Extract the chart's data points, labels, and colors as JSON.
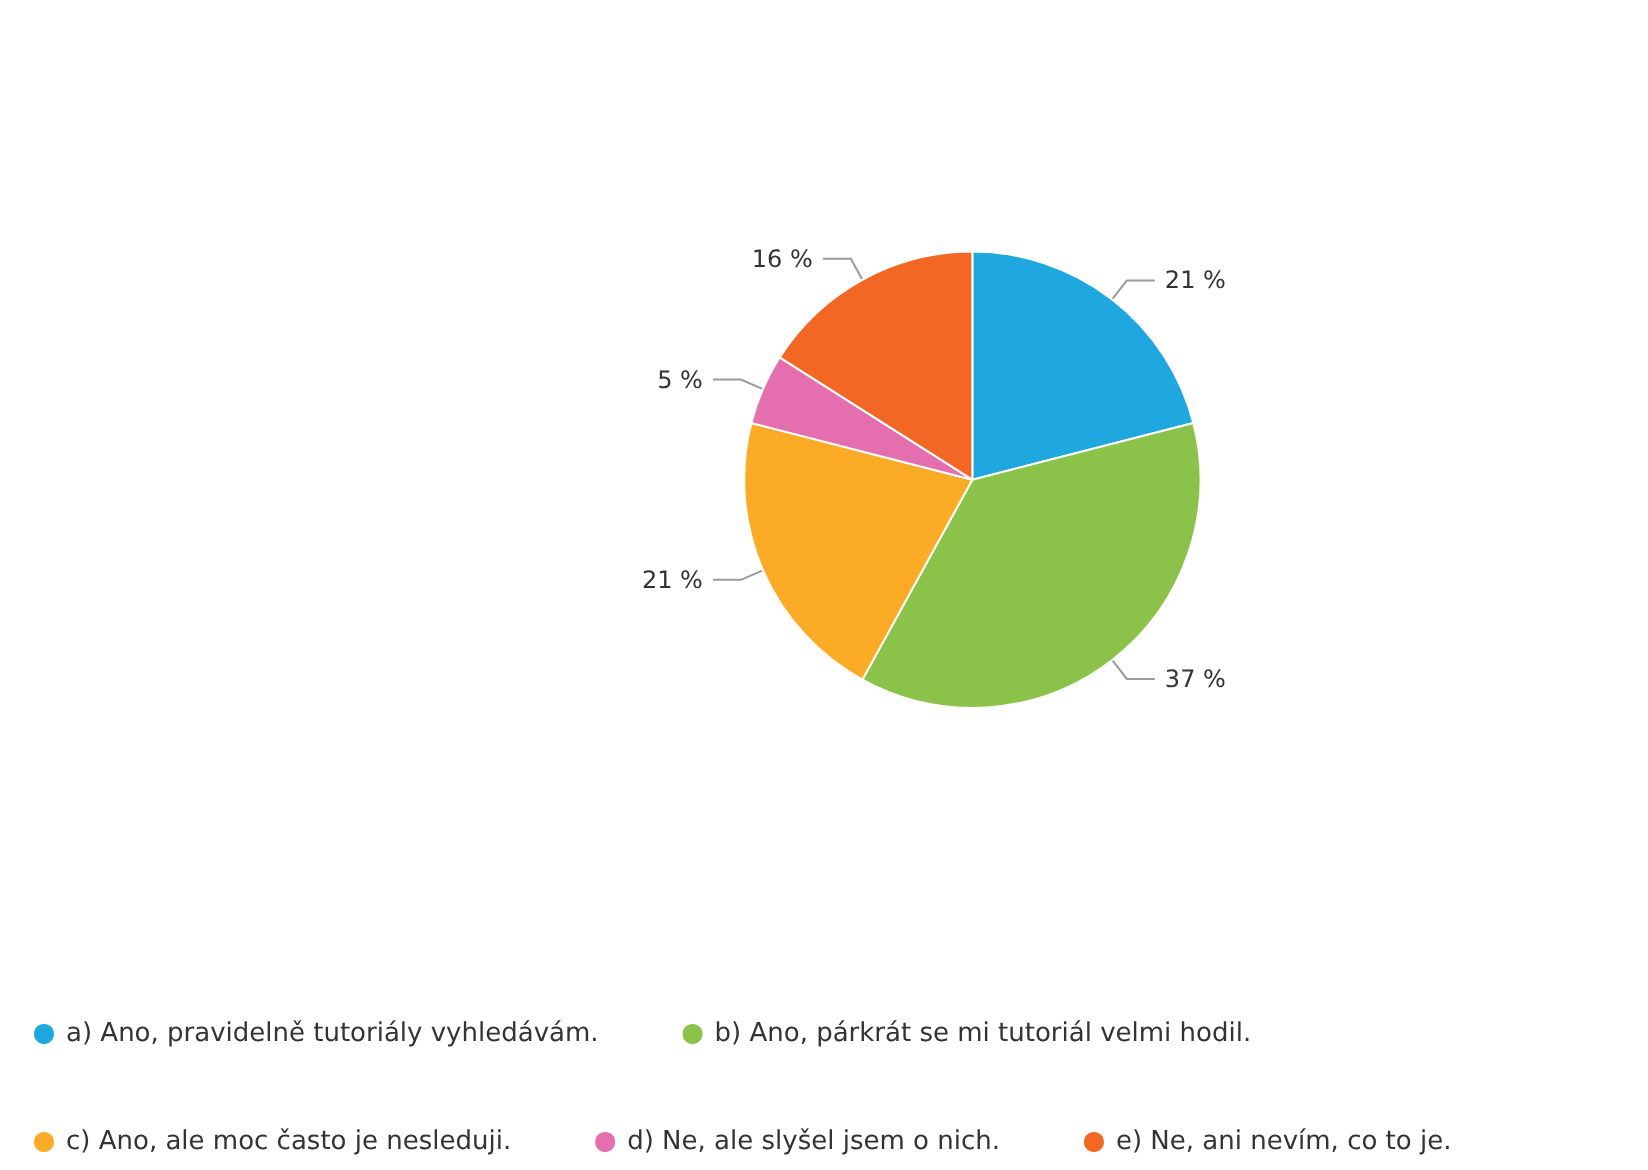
{
  "chart_data": {
    "type": "pie",
    "categories": [
      "a) Ano, pravidelně tutoriály vyhledávám.",
      "b) Ano, párkrát se mi tutoriál velmi hodil.",
      "c) Ano, ale moc často je nesleduji.",
      "d) Ne, ale slyšel jsem o nich.",
      "e) Ne, ani nevím, co to je."
    ],
    "values": [
      21,
      37,
      21,
      5,
      16
    ],
    "colors": [
      "#1fa8e0",
      "#8bc34a",
      "#fbab26",
      "#e56eae",
      "#f26724"
    ],
    "value_labels": [
      "21 %",
      "37 %",
      "21 %",
      "5 %",
      "16 %"
    ],
    "legend": "bottom"
  }
}
